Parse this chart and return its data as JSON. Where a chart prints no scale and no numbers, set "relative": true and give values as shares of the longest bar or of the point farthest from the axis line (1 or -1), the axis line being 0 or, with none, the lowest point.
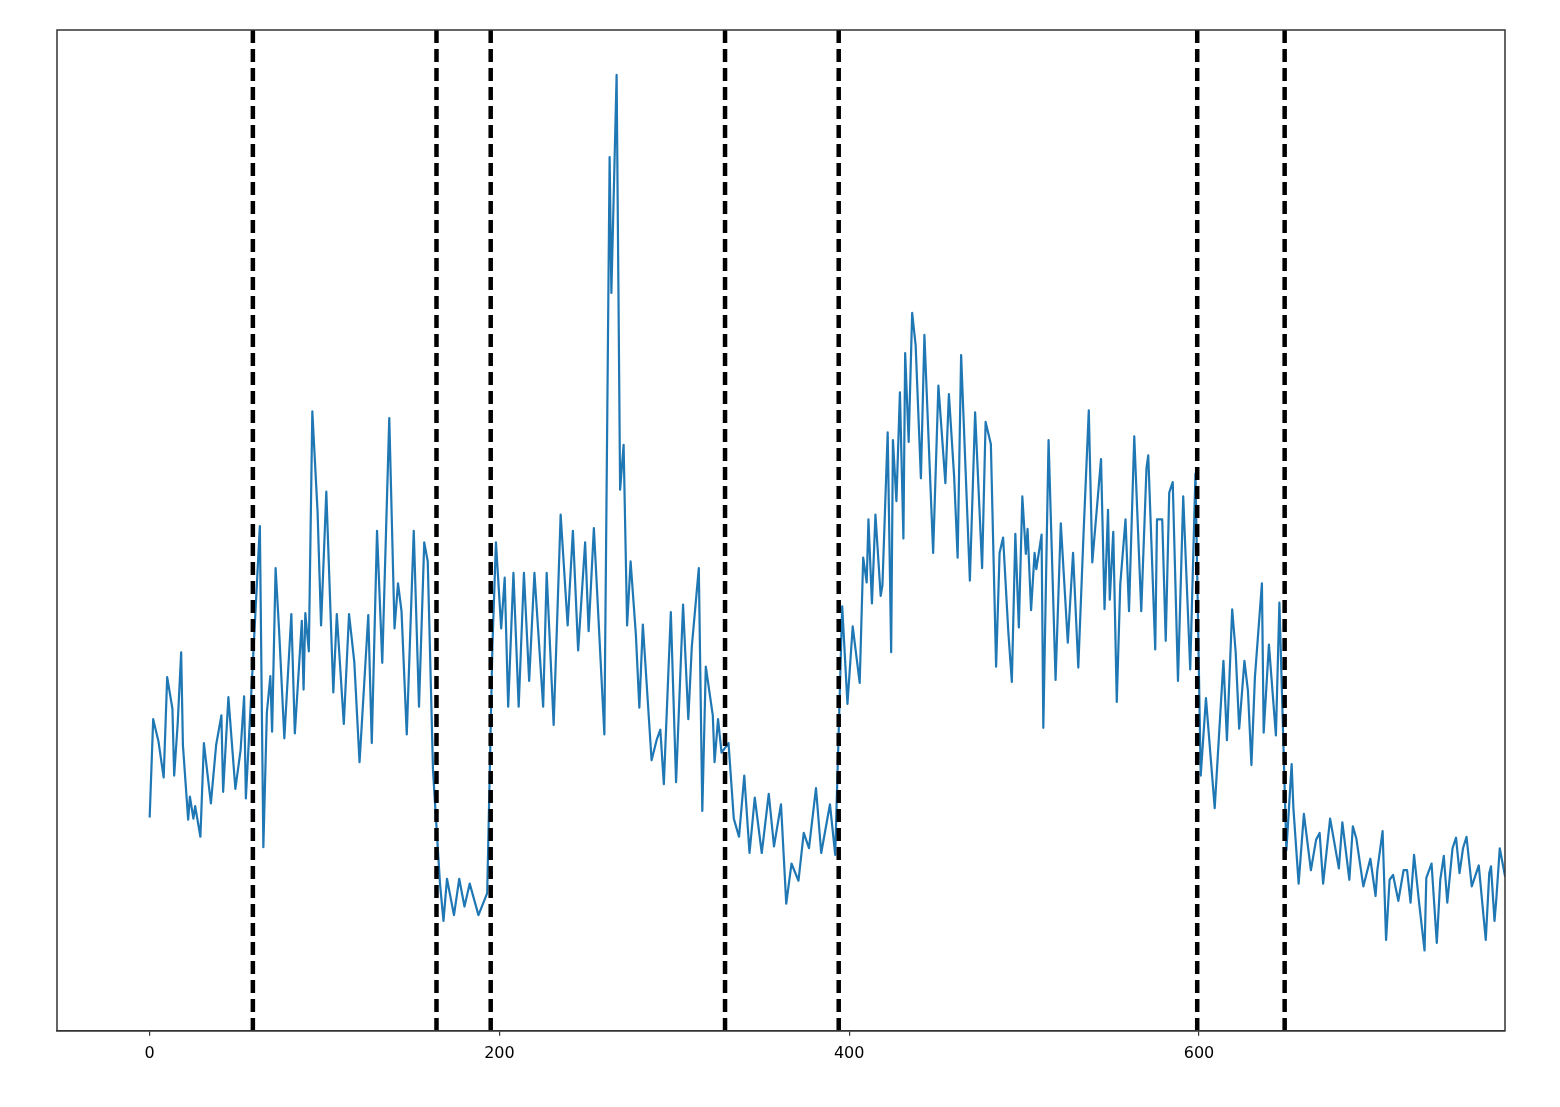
{
  "chart_data": {
    "type": "line",
    "relative": true,
    "tick_labels": "x",
    "marker": "none",
    "color": "#1f77b4",
    "xlim": [
      -53,
      775
    ],
    "xticks": [
      0,
      200,
      400,
      600
    ],
    "x": [
      0,
      2,
      5,
      8,
      10,
      13,
      14,
      16,
      18,
      19,
      22,
      23,
      25,
      26,
      29,
      31,
      35,
      38,
      41,
      42,
      45,
      49,
      52,
      54,
      55,
      63,
      65,
      67,
      69,
      70,
      72,
      74,
      77,
      81,
      83,
      87,
      88,
      89,
      91,
      93,
      96,
      98,
      101,
      105,
      107,
      111,
      114,
      117,
      120,
      125,
      127,
      130,
      133,
      137,
      140,
      142,
      144,
      147,
      151,
      154,
      157,
      159,
      162,
      166,
      168,
      170,
      174,
      177,
      180,
      183,
      188,
      193,
      196,
      198,
      201,
      203,
      205,
      208,
      211,
      214,
      217,
      220,
      225,
      227,
      231,
      235,
      239,
      242,
      245,
      249,
      251,
      254,
      260,
      263,
      264,
      267,
      269,
      271,
      273,
      275,
      278,
      280,
      282,
      287,
      290,
      292,
      294,
      298,
      301,
      305,
      308,
      310,
      314,
      316,
      318,
      322,
      323,
      325,
      327,
      331,
      334,
      337,
      340,
      343,
      346,
      350,
      354,
      357,
      361,
      364,
      367,
      371,
      374,
      377,
      381,
      384,
      389,
      392,
      396,
      399,
      402,
      406,
      408,
      410,
      411,
      413,
      415,
      418,
      419,
      422,
      424,
      425,
      427,
      429,
      431,
      432,
      434,
      436,
      438,
      441,
      443,
      448,
      451,
      455,
      457,
      460,
      462,
      464,
      469,
      472,
      476,
      478,
      481,
      484,
      486,
      488,
      491,
      493,
      495,
      497,
      499,
      501,
      502,
      504,
      506,
      507,
      510,
      511,
      514,
      518,
      521,
      525,
      528,
      531,
      534,
      537,
      539,
      544,
      546,
      548,
      549,
      551,
      553,
      555,
      558,
      560,
      563,
      567,
      570,
      571,
      575,
      576,
      579,
      581,
      583,
      585,
      588,
      591,
      595,
      598,
      601,
      604,
      609,
      614,
      616,
      619,
      621,
      623,
      626,
      628,
      630,
      632,
      636,
      637,
      640,
      644,
      646,
      650,
      653,
      654,
      657,
      660,
      664,
      667,
      669,
      671,
      675,
      680,
      682,
      686,
      688,
      690,
      694,
      698,
      701,
      702,
      705,
      707,
      709,
      711,
      714,
      717,
      719,
      721,
      723,
      726,
      729,
      730,
      733,
      736,
      738,
      740,
      742,
      745,
      747,
      749,
      751,
      753,
      756,
      758,
      760,
      764,
      766,
      767,
      769,
      770,
      772,
      775
    ],
    "values": [
      0.224,
      0.326,
      0.303,
      0.265,
      0.37,
      0.337,
      0.267,
      0.321,
      0.396,
      0.299,
      0.221,
      0.245,
      0.222,
      0.235,
      0.203,
      0.301,
      0.238,
      0.299,
      0.33,
      0.25,
      0.349,
      0.253,
      0.294,
      0.35,
      0.243,
      0.528,
      0.192,
      0.333,
      0.371,
      0.313,
      0.484,
      0.419,
      0.306,
      0.436,
      0.311,
      0.429,
      0.357,
      0.437,
      0.397,
      0.648,
      0.543,
      0.424,
      0.564,
      0.354,
      0.436,
      0.321,
      0.436,
      0.386,
      0.281,
      0.435,
      0.301,
      0.523,
      0.385,
      0.641,
      0.421,
      0.468,
      0.439,
      0.31,
      0.523,
      0.339,
      0.511,
      0.491,
      0.273,
      0.154,
      0.115,
      0.159,
      0.121,
      0.159,
      0.13,
      0.154,
      0.121,
      0.144,
      0.404,
      0.511,
      0.421,
      0.474,
      0.339,
      0.479,
      0.339,
      0.479,
      0.366,
      0.479,
      0.339,
      0.479,
      0.32,
      0.54,
      0.424,
      0.523,
      0.398,
      0.511,
      0.418,
      0.526,
      0.31,
      0.914,
      0.772,
      1,
      0.566,
      0.613,
      0.424,
      0.491,
      0.415,
      0.338,
      0.425,
      0.283,
      0.305,
      0.315,
      0.258,
      0.438,
      0.26,
      0.446,
      0.326,
      0.402,
      0.484,
      0.23,
      0.381,
      0.33,
      0.281,
      0.326,
      0.291,
      0.301,
      0.222,
      0.203,
      0.267,
      0.186,
      0.244,
      0.186,
      0.248,
      0.193,
      0.237,
      0.133,
      0.175,
      0.157,
      0.207,
      0.191,
      0.254,
      0.186,
      0.237,
      0.184,
      0.444,
      0.342,
      0.423,
      0.364,
      0.495,
      0.469,
      0.535,
      0.447,
      0.54,
      0.455,
      0.466,
      0.626,
      0.396,
      0.618,
      0.554,
      0.668,
      0.515,
      0.709,
      0.616,
      0.751,
      0.717,
      0.578,
      0.728,
      0.5,
      0.675,
      0.573,
      0.666,
      0.58,
      0.495,
      0.707,
      0.471,
      0.647,
      0.484,
      0.637,
      0.614,
      0.381,
      0.5,
      0.516,
      0.417,
      0.365,
      0.52,
      0.422,
      0.559,
      0.499,
      0.525,
      0.44,
      0.5,
      0.483,
      0.519,
      0.317,
      0.618,
      0.367,
      0.531,
      0.406,
      0.5,
      0.38,
      0.52,
      0.649,
      0.49,
      0.598,
      0.441,
      0.545,
      0.451,
      0.522,
      0.344,
      0.467,
      0.535,
      0.439,
      0.622,
      0.439,
      0.589,
      0.602,
      0.399,
      0.535,
      0.535,
      0.408,
      0.563,
      0.574,
      0.366,
      0.559,
      0.378,
      0.583,
      0.267,
      0.348,
      0.233,
      0.387,
      0.304,
      0.441,
      0.396,
      0.316,
      0.387,
      0.356,
      0.278,
      0.37,
      0.468,
      0.312,
      0.404,
      0.309,
      0.448,
      0.189,
      0.279,
      0.233,
      0.154,
      0.227,
      0.168,
      0.2,
      0.207,
      0.154,
      0.222,
      0.17,
      0.218,
      0.158,
      0.214,
      0.201,
      0.151,
      0.18,
      0.141,
      0.168,
      0.209,
      0.095,
      0.158,
      0.163,
      0.136,
      0.168,
      0.168,
      0.134,
      0.184,
      0.132,
      0.084,
      0.16,
      0.175,
      0.092,
      0.158,
      0.183,
      0.134,
      0.191,
      0.202,
      0.165,
      0.191,
      0.203,
      0.151,
      0.162,
      0.173,
      0.095,
      0.165,
      0.172,
      0.115,
      0.137,
      0.191,
      0.162
    ],
    "ref_lines": [
      {
        "axis": "x",
        "value": 59,
        "color": "#000000",
        "line_style": "dashed"
      },
      {
        "axis": "x",
        "value": 164,
        "color": "#000000",
        "line_style": "dashed"
      },
      {
        "axis": "x",
        "value": 195,
        "color": "#000000",
        "line_style": "dashed"
      },
      {
        "axis": "x",
        "value": 329,
        "color": "#000000",
        "line_style": "dashed"
      },
      {
        "axis": "x",
        "value": 394,
        "color": "#000000",
        "line_style": "dashed"
      },
      {
        "axis": "x",
        "value": 599,
        "color": "#000000",
        "line_style": "dashed"
      },
      {
        "axis": "x",
        "value": 649,
        "color": "#000000",
        "line_style": "dashed"
      }
    ]
  }
}
